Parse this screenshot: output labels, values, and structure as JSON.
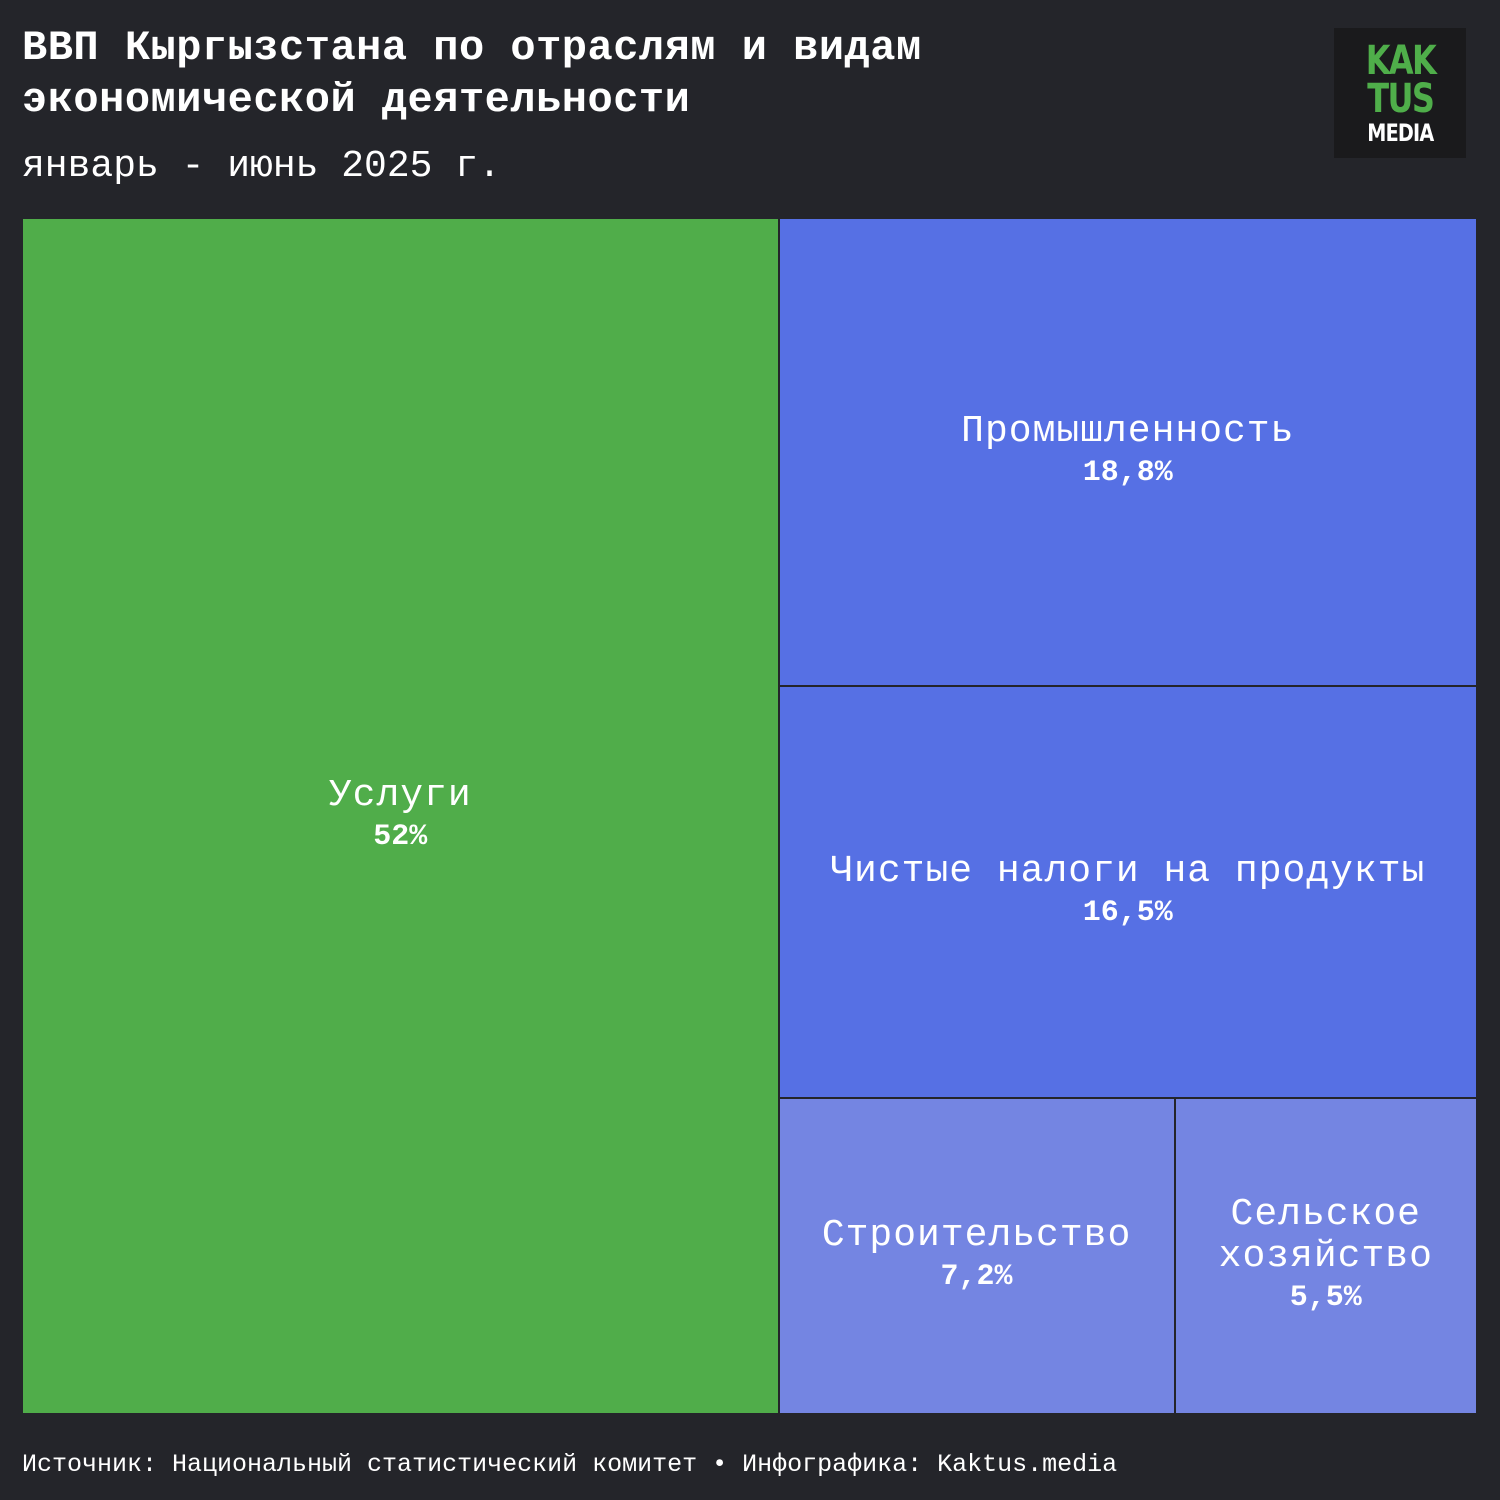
{
  "header": {
    "title": "ВВП Кыргызстана по отраслям и видам экономической деятельности",
    "subtitle": "январь - июнь 2025 г."
  },
  "logo": {
    "line1": "KAK",
    "line2": "TUS",
    "line3": "MEDIA",
    "accent_color": "#4fae4a"
  },
  "footer": {
    "text": "Источник: Национальный статистический комитет • Инфографика: Kaktus.media"
  },
  "chart_data": {
    "type": "treemap",
    "values_unit": "%",
    "items": [
      {
        "label": "Услуги",
        "value": 52,
        "value_label": "52%",
        "color": "#50ad4a"
      },
      {
        "label": "Промышленность",
        "value": 18.8,
        "value_label": "18,8%",
        "color": "#5670e4"
      },
      {
        "label": "Чистые налоги на продукты",
        "value": 16.5,
        "value_label": "16,5%",
        "color": "#5670e4"
      },
      {
        "label": "Строительство",
        "value": 7.2,
        "value_label": "7,2%",
        "color": "#7485e2"
      },
      {
        "label": "Сельское хозяйство",
        "value": 5.5,
        "value_label": "5,5%",
        "color": "#7485e2"
      }
    ]
  }
}
